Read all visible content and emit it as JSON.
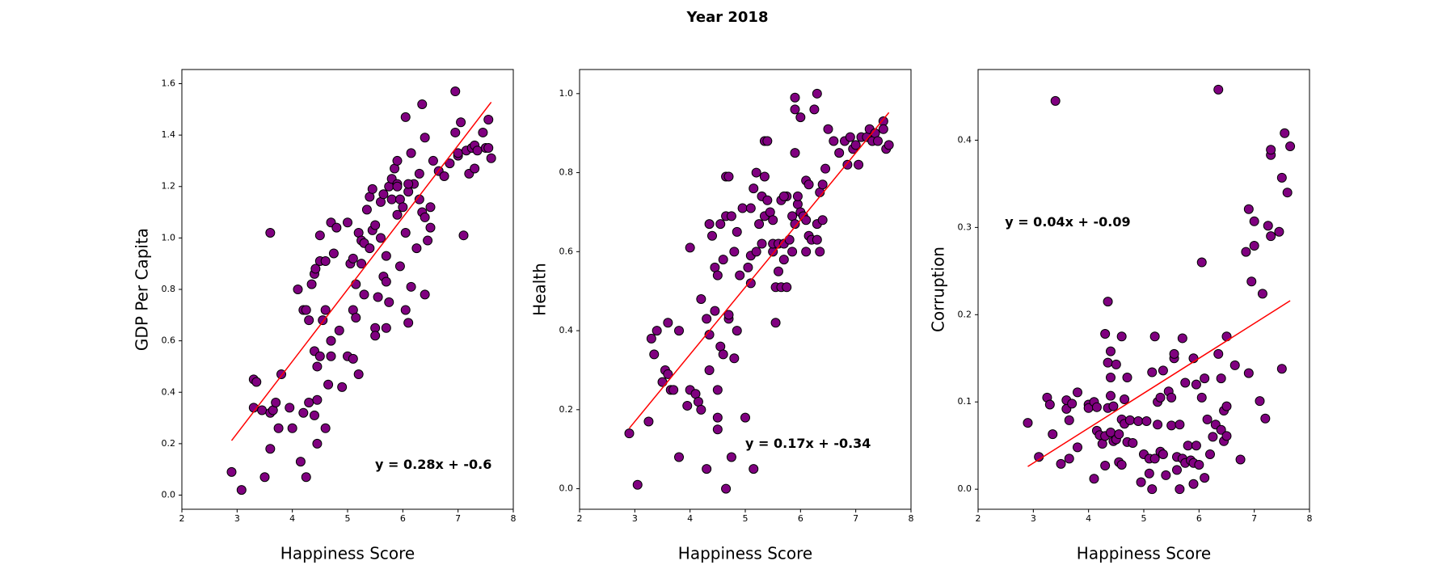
{
  "title": "Year 2018",
  "chart_data": [
    {
      "type": "scatter",
      "xlabel": "Happiness Score",
      "ylabel": "GDP Per Capita",
      "x": [
        2.9,
        3.08,
        3.3,
        3.3,
        3.35,
        3.45,
        3.5,
        3.6,
        3.6,
        3.6,
        3.65,
        3.7,
        3.75,
        3.8,
        3.95,
        4.0,
        4.1,
        4.15,
        4.2,
        4.2,
        4.25,
        4.3,
        4.3,
        4.35,
        4.4,
        4.4,
        4.4,
        4.42,
        4.45,
        4.45,
        4.45,
        4.5,
        4.5,
        4.5,
        4.55,
        4.6,
        4.6,
        4.6,
        4.65,
        4.7,
        4.7,
        4.7,
        4.75,
        4.8,
        4.85,
        4.9,
        5.0,
        5.0,
        5.05,
        5.1,
        5.1,
        5.1,
        5.15,
        5.15,
        5.2,
        5.2,
        5.25,
        5.3,
        5.3,
        5.35,
        5.4,
        5.4,
        5.45,
        5.45,
        5.5,
        5.5,
        5.5,
        5.55,
        5.6,
        5.6,
        5.65,
        5.65,
        5.7,
        5.7,
        5.7,
        5.75,
        5.75,
        5.8,
        5.8,
        5.85,
        5.9,
        5.9,
        5.9,
        5.95,
        5.95,
        6.0,
        6.05,
        6.05,
        6.1,
        6.1,
        6.15,
        6.2,
        6.25,
        6.3,
        6.3,
        6.35,
        6.35,
        6.4,
        6.4,
        6.4,
        6.45,
        6.5,
        6.5,
        6.55,
        6.65,
        6.75,
        6.85,
        6.95,
        6.95,
        7.0,
        7.0,
        7.05,
        7.1,
        7.15,
        7.2,
        7.25,
        7.3,
        7.3,
        7.35,
        7.45,
        7.5,
        7.55,
        7.6,
        7.55,
        6.05,
        6.15,
        5.9,
        6.1,
        5.25,
        4.25
      ],
      "y": [
        0.09,
        0.02,
        0.34,
        0.45,
        0.44,
        0.33,
        0.07,
        0.32,
        1.02,
        0.18,
        0.33,
        0.36,
        0.26,
        0.47,
        0.34,
        0.26,
        0.8,
        0.13,
        0.72,
        0.32,
        0.07,
        0.36,
        0.68,
        0.82,
        0.86,
        0.56,
        0.31,
        0.88,
        0.2,
        0.5,
        0.37,
        0.54,
        0.91,
        1.01,
        0.68,
        0.91,
        0.26,
        0.72,
        0.43,
        0.54,
        0.6,
        1.06,
        0.94,
        1.04,
        0.64,
        0.42,
        0.54,
        1.06,
        0.9,
        0.92,
        0.72,
        0.53,
        0.82,
        0.69,
        0.47,
        1.02,
        0.99,
        0.78,
        0.98,
        1.11,
        1.16,
        0.96,
        1.19,
        1.03,
        0.65,
        1.05,
        0.62,
        0.77,
        1.0,
        1.14,
        0.85,
        1.17,
        0.93,
        0.83,
        0.65,
        1.2,
        0.75,
        1.15,
        1.23,
        1.27,
        1.3,
        1.09,
        1.21,
        1.15,
        0.89,
        1.12,
        1.02,
        0.72,
        1.18,
        0.67,
        0.81,
        1.21,
        0.96,
        1.15,
        1.25,
        1.52,
        1.1,
        1.08,
        1.39,
        0.78,
        0.99,
        1.12,
        1.04,
        1.3,
        1.26,
        1.24,
        1.29,
        1.57,
        1.41,
        1.32,
        1.33,
        1.45,
        1.01,
        1.34,
        1.25,
        1.35,
        1.36,
        1.27,
        1.34,
        1.41,
        1.35,
        1.46,
        1.31,
        1.35,
        1.47,
        1.33,
        1.2,
        1.21,
        0.9,
        0.72
      ],
      "color": "#800080",
      "edgecolor": "#000000",
      "fit": {
        "slope": 0.28,
        "intercept": -0.6,
        "color": "#ff0000"
      },
      "annotation": "y = 0.28x + -0.6",
      "annotation_color": "#0000ff",
      "xlim": [
        2,
        8
      ],
      "xticks": [
        2,
        3,
        4,
        5,
        6,
        7,
        8
      ],
      "ylim": [
        -0.055,
        1.655
      ],
      "yticks": [
        {
          "value": 0,
          "label": "0.0"
        },
        0.2,
        0.4,
        0.6,
        0.8,
        {
          "value": 1,
          "label": "1.0"
        },
        1.2,
        1.4,
        1.6
      ]
    },
    {
      "type": "scatter",
      "xlabel": "Happiness Score",
      "ylabel": "Health",
      "x": [
        2.9,
        3.05,
        3.25,
        3.3,
        3.35,
        3.4,
        3.5,
        3.55,
        3.6,
        3.6,
        3.65,
        3.7,
        3.8,
        3.8,
        3.95,
        4.0,
        4.0,
        4.1,
        4.15,
        4.2,
        4.2,
        4.3,
        4.3,
        4.35,
        4.35,
        4.35,
        4.4,
        4.45,
        4.45,
        4.5,
        4.5,
        4.5,
        4.5,
        4.55,
        4.55,
        4.6,
        4.6,
        4.65,
        4.65,
        4.65,
        4.7,
        4.7,
        4.75,
        4.75,
        4.8,
        4.8,
        4.85,
        4.85,
        4.9,
        4.95,
        5.0,
        5.05,
        5.1,
        5.1,
        5.1,
        5.15,
        5.15,
        5.2,
        5.2,
        5.25,
        5.3,
        5.3,
        5.35,
        5.35,
        5.35,
        5.4,
        5.4,
        5.45,
        5.5,
        5.5,
        5.5,
        5.55,
        5.55,
        5.6,
        5.6,
        5.65,
        5.65,
        5.7,
        5.7,
        5.75,
        5.75,
        5.8,
        5.85,
        5.85,
        5.9,
        5.9,
        5.9,
        5.9,
        5.95,
        5.95,
        6.0,
        6.0,
        6.05,
        6.1,
        6.1,
        6.1,
        6.15,
        6.15,
        6.2,
        6.25,
        6.3,
        6.3,
        6.3,
        6.35,
        6.35,
        6.4,
        6.4,
        6.45,
        6.5,
        6.6,
        6.7,
        6.8,
        6.85,
        6.9,
        6.95,
        7.0,
        7.05,
        7.1,
        7.2,
        7.25,
        7.3,
        7.35,
        7.4,
        7.5,
        7.5,
        7.55,
        7.6,
        5.7,
        4.7
      ],
      "y": [
        0.14,
        0.01,
        0.17,
        0.38,
        0.34,
        0.4,
        0.27,
        0.3,
        0.42,
        0.29,
        0.25,
        0.25,
        0.4,
        0.08,
        0.21,
        0.25,
        0.61,
        0.24,
        0.22,
        0.48,
        0.2,
        0.43,
        0.05,
        0.67,
        0.3,
        0.39,
        0.64,
        0.45,
        0.56,
        0.54,
        0.18,
        0.25,
        0.15,
        0.67,
        0.36,
        0.58,
        0.34,
        0.79,
        0.0,
        0.69,
        0.43,
        0.44,
        0.69,
        0.08,
        0.33,
        0.6,
        0.65,
        0.4,
        0.54,
        0.71,
        0.18,
        0.56,
        0.59,
        0.52,
        0.71,
        0.76,
        0.05,
        0.8,
        0.6,
        0.67,
        0.74,
        0.62,
        0.69,
        0.79,
        0.88,
        0.88,
        0.73,
        0.7,
        0.68,
        0.6,
        0.62,
        0.51,
        0.42,
        0.62,
        0.55,
        0.51,
        0.73,
        0.62,
        0.58,
        0.74,
        0.51,
        0.63,
        0.6,
        0.69,
        0.96,
        0.85,
        0.99,
        0.67,
        0.72,
        0.74,
        0.94,
        0.7,
        0.69,
        0.6,
        0.68,
        0.78,
        0.64,
        0.77,
        0.63,
        0.96,
        0.63,
        1.0,
        0.67,
        0.75,
        0.6,
        0.68,
        0.77,
        0.81,
        0.91,
        0.88,
        0.85,
        0.88,
        0.82,
        0.89,
        0.86,
        0.87,
        0.82,
        0.89,
        0.89,
        0.91,
        0.88,
        0.9,
        0.88,
        0.93,
        0.91,
        0.86,
        0.87,
        0.74,
        0.79
      ],
      "color": "#800080",
      "edgecolor": "#000000",
      "fit": {
        "slope": 0.17,
        "intercept": -0.34,
        "color": "#ff0000"
      },
      "annotation": "y = 0.17x + -0.34",
      "annotation_color": "#0000ff",
      "xlim": [
        2,
        8
      ],
      "xticks": [
        2,
        3,
        4,
        5,
        6,
        7,
        8
      ],
      "ylim": [
        -0.052,
        1.061
      ],
      "yticks": [
        {
          "value": 0,
          "label": "0.0"
        },
        0.2,
        0.4,
        0.6,
        0.8,
        {
          "value": 1,
          "label": "1.0"
        }
      ]
    },
    {
      "type": "scatter",
      "xlabel": "Happiness Score",
      "ylabel": "Corruption",
      "x": [
        2.9,
        3.1,
        3.25,
        3.3,
        3.35,
        3.4,
        3.5,
        3.6,
        3.6,
        3.65,
        3.65,
        3.7,
        3.8,
        3.8,
        4.0,
        4.0,
        4.1,
        4.1,
        4.15,
        4.15,
        4.2,
        4.25,
        4.3,
        4.3,
        4.3,
        4.35,
        4.35,
        4.35,
        4.4,
        4.4,
        4.4,
        4.4,
        4.45,
        4.45,
        4.5,
        4.5,
        4.55,
        4.55,
        4.6,
        4.6,
        4.6,
        4.65,
        4.65,
        4.7,
        4.7,
        4.75,
        4.8,
        4.9,
        4.95,
        5.0,
        5.05,
        5.1,
        5.1,
        5.15,
        5.15,
        5.2,
        5.2,
        5.25,
        5.25,
        5.3,
        5.3,
        5.35,
        5.35,
        5.4,
        5.45,
        5.5,
        5.5,
        5.55,
        5.55,
        5.6,
        5.6,
        5.65,
        5.65,
        5.7,
        5.7,
        5.75,
        5.75,
        5.8,
        5.85,
        5.9,
        5.9,
        5.9,
        5.95,
        5.95,
        6.0,
        6.05,
        6.05,
        6.1,
        6.1,
        6.15,
        6.2,
        6.25,
        6.3,
        6.35,
        6.35,
        6.4,
        6.4,
        6.45,
        6.45,
        6.5,
        6.5,
        6.5,
        6.65,
        6.75,
        6.85,
        6.9,
        6.9,
        6.95,
        7.0,
        7.0,
        7.1,
        7.15,
        7.2,
        7.25,
        7.3,
        7.3,
        7.3,
        7.45,
        7.5,
        7.5,
        7.55,
        7.6,
        7.65
      ],
      "y": [
        0.076,
        0.037,
        0.105,
        0.097,
        0.063,
        0.445,
        0.029,
        0.102,
        0.092,
        0.079,
        0.035,
        0.098,
        0.111,
        0.048,
        0.097,
        0.093,
        0.1,
        0.012,
        0.067,
        0.094,
        0.062,
        0.052,
        0.178,
        0.061,
        0.027,
        0.215,
        0.145,
        0.093,
        0.158,
        0.128,
        0.107,
        0.065,
        0.095,
        0.055,
        0.143,
        0.057,
        0.063,
        0.031,
        0.175,
        0.08,
        0.028,
        0.103,
        0.075,
        0.128,
        0.054,
        0.079,
        0.053,
        0.078,
        0.008,
        0.04,
        0.078,
        0.035,
        0.018,
        0.134,
        0.0,
        0.175,
        0.035,
        0.1,
        0.074,
        0.043,
        0.105,
        0.04,
        0.136,
        0.016,
        0.112,
        0.105,
        0.073,
        0.15,
        0.155,
        0.037,
        0.022,
        0.0,
        0.074,
        0.173,
        0.035,
        0.122,
        0.03,
        0.05,
        0.033,
        0.15,
        0.006,
        0.03,
        0.12,
        0.05,
        0.028,
        0.26,
        0.105,
        0.127,
        0.013,
        0.08,
        0.04,
        0.06,
        0.074,
        0.458,
        0.155,
        0.127,
        0.068,
        0.055,
        0.09,
        0.095,
        0.061,
        0.175,
        0.142,
        0.034,
        0.272,
        0.321,
        0.133,
        0.238,
        0.307,
        0.279,
        0.101,
        0.224,
        0.081,
        0.302,
        0.383,
        0.389,
        0.29,
        0.295,
        0.357,
        0.138,
        0.408,
        0.34,
        0.393
      ],
      "color": "#800080",
      "edgecolor": "#000000",
      "fit": {
        "slope": 0.04,
        "intercept": -0.09,
        "color": "#ff0000"
      },
      "annotation": "y = 0.04x + -0.09",
      "annotation_color": "#0000ff",
      "xlim": [
        2,
        8
      ],
      "xticks": [
        2,
        3,
        4,
        5,
        6,
        7,
        8
      ],
      "ylim": [
        -0.023,
        0.481
      ],
      "yticks": [
        {
          "value": 0,
          "label": "0.0"
        },
        0.1,
        0.2,
        0.3,
        0.4
      ]
    }
  ]
}
